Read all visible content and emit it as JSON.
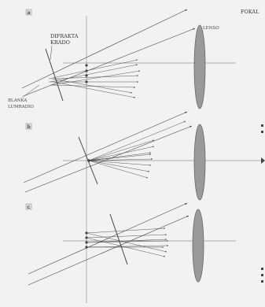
{
  "panels": [
    {
      "tag": "a"
    },
    {
      "tag": "b"
    },
    {
      "tag": "c"
    }
  ],
  "labels": {
    "focal_plane": "FOKAL",
    "diffraction_grating_line1": "DIFRAKTA",
    "diffraction_grating_line2": "KRADO",
    "lens": "LENSO",
    "light_beam_line1": "BLANKA",
    "light_beam_line2": "LUMRADIO"
  },
  "colors": {
    "background": "#f2f2f2",
    "ink": "#444444",
    "lens_fill": "#9a9a9a",
    "lens_stroke": "#666666"
  }
}
